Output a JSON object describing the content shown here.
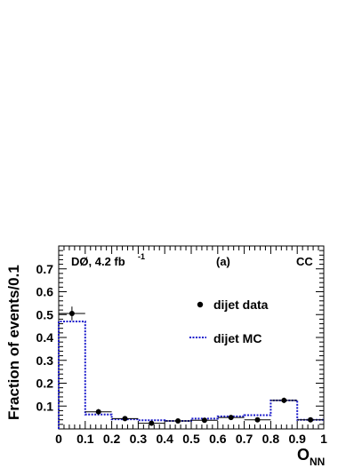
{
  "chart_data": {
    "type": "scatter",
    "title": "",
    "xlabel_main": "O",
    "xlabel_sub": "NN",
    "ylabel": "Fraction of events/0.1",
    "xlim": [
      0,
      1
    ],
    "ylim": [
      0,
      0.8
    ],
    "grid": false,
    "legend_placement": "center-right",
    "x_ticks": [
      "0",
      "0.1",
      "0.2",
      "0.3",
      "0.4",
      "0.5",
      "0.6",
      "0.7",
      "0.8",
      "0.9",
      "1"
    ],
    "y_ticks": [
      "0.1",
      "0.2",
      "0.3",
      "0.4",
      "0.5",
      "0.6",
      "0.7"
    ],
    "y_tick_values": [
      0.1,
      0.2,
      0.3,
      0.4,
      0.5,
      0.6,
      0.7
    ],
    "annotations": {
      "experiment": "DØ, 4.2 fb",
      "exponent": "-1",
      "panel": "(a)",
      "region": "CC"
    },
    "bin_edges": [
      0,
      0.1,
      0.2,
      0.3,
      0.4,
      0.5,
      0.6,
      0.7,
      0.8,
      0.9,
      1.0
    ],
    "series": [
      {
        "name": "dijet data",
        "style": "points",
        "color": "#000000",
        "x": [
          0.05,
          0.15,
          0.25,
          0.35,
          0.45,
          0.55,
          0.65,
          0.75,
          0.85,
          0.95
        ],
        "values": [
          0.505,
          0.075,
          0.045,
          0.025,
          0.035,
          0.038,
          0.05,
          0.04,
          0.125,
          0.04
        ],
        "errors": [
          0.03,
          0.012,
          0.008,
          0.006,
          0.006,
          0.007,
          0.008,
          0.008,
          0.012,
          0.006
        ]
      },
      {
        "name": "dijet MC",
        "style": "step",
        "color": "#1a1acc",
        "values": [
          0.47,
          0.063,
          0.042,
          0.038,
          0.035,
          0.045,
          0.055,
          0.06,
          0.125,
          0.04
        ]
      }
    ]
  }
}
